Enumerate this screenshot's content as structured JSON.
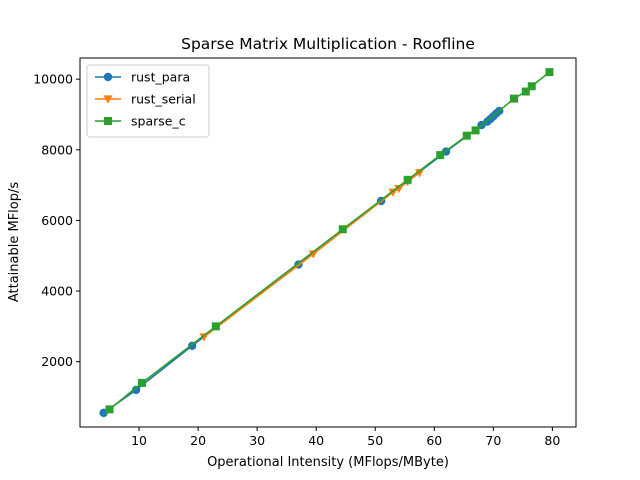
{
  "chart_data": {
    "type": "line",
    "title": "Sparse Matrix Multiplication - Roofline",
    "xlabel": "Operational Intensity (MFlops/MByte)",
    "ylabel": "Attainable MFlop/s",
    "xlim": [
      0,
      84
    ],
    "ylim": [
      150,
      10600
    ],
    "xticks": [
      10,
      20,
      30,
      40,
      50,
      60,
      70,
      80
    ],
    "yticks": [
      2000,
      4000,
      6000,
      8000,
      10000
    ],
    "grid": false,
    "legend_position": "upper-left",
    "series": [
      {
        "name": "rust_para",
        "color": "#1f77b4",
        "marker": "circle",
        "x": [
          4.0,
          9.5,
          19.0,
          37.0,
          51.0,
          62.0,
          68.0,
          69.0,
          69.5,
          70.0,
          70.5,
          71.0
        ],
        "y": [
          550,
          1200,
          2450,
          4750,
          6550,
          7950,
          8700,
          8800,
          8870,
          8950,
          9030,
          9100
        ]
      },
      {
        "name": "rust_serial",
        "color": "#ff7f0e",
        "marker": "triangle-down",
        "x": [
          21.0,
          39.5,
          53.0,
          54.0,
          55.5,
          57.5
        ],
        "y": [
          2700,
          5050,
          6800,
          6900,
          7100,
          7350
        ]
      },
      {
        "name": "sparse_c",
        "color": "#2ca02c",
        "marker": "square",
        "x": [
          5.0,
          10.5,
          23.0,
          44.5,
          55.5,
          61.0,
          65.5,
          67.0,
          73.5,
          75.5,
          76.5,
          79.5
        ],
        "y": [
          650,
          1400,
          3000,
          5750,
          7150,
          7850,
          8400,
          8550,
          9450,
          9650,
          9800,
          10200
        ]
      }
    ]
  }
}
